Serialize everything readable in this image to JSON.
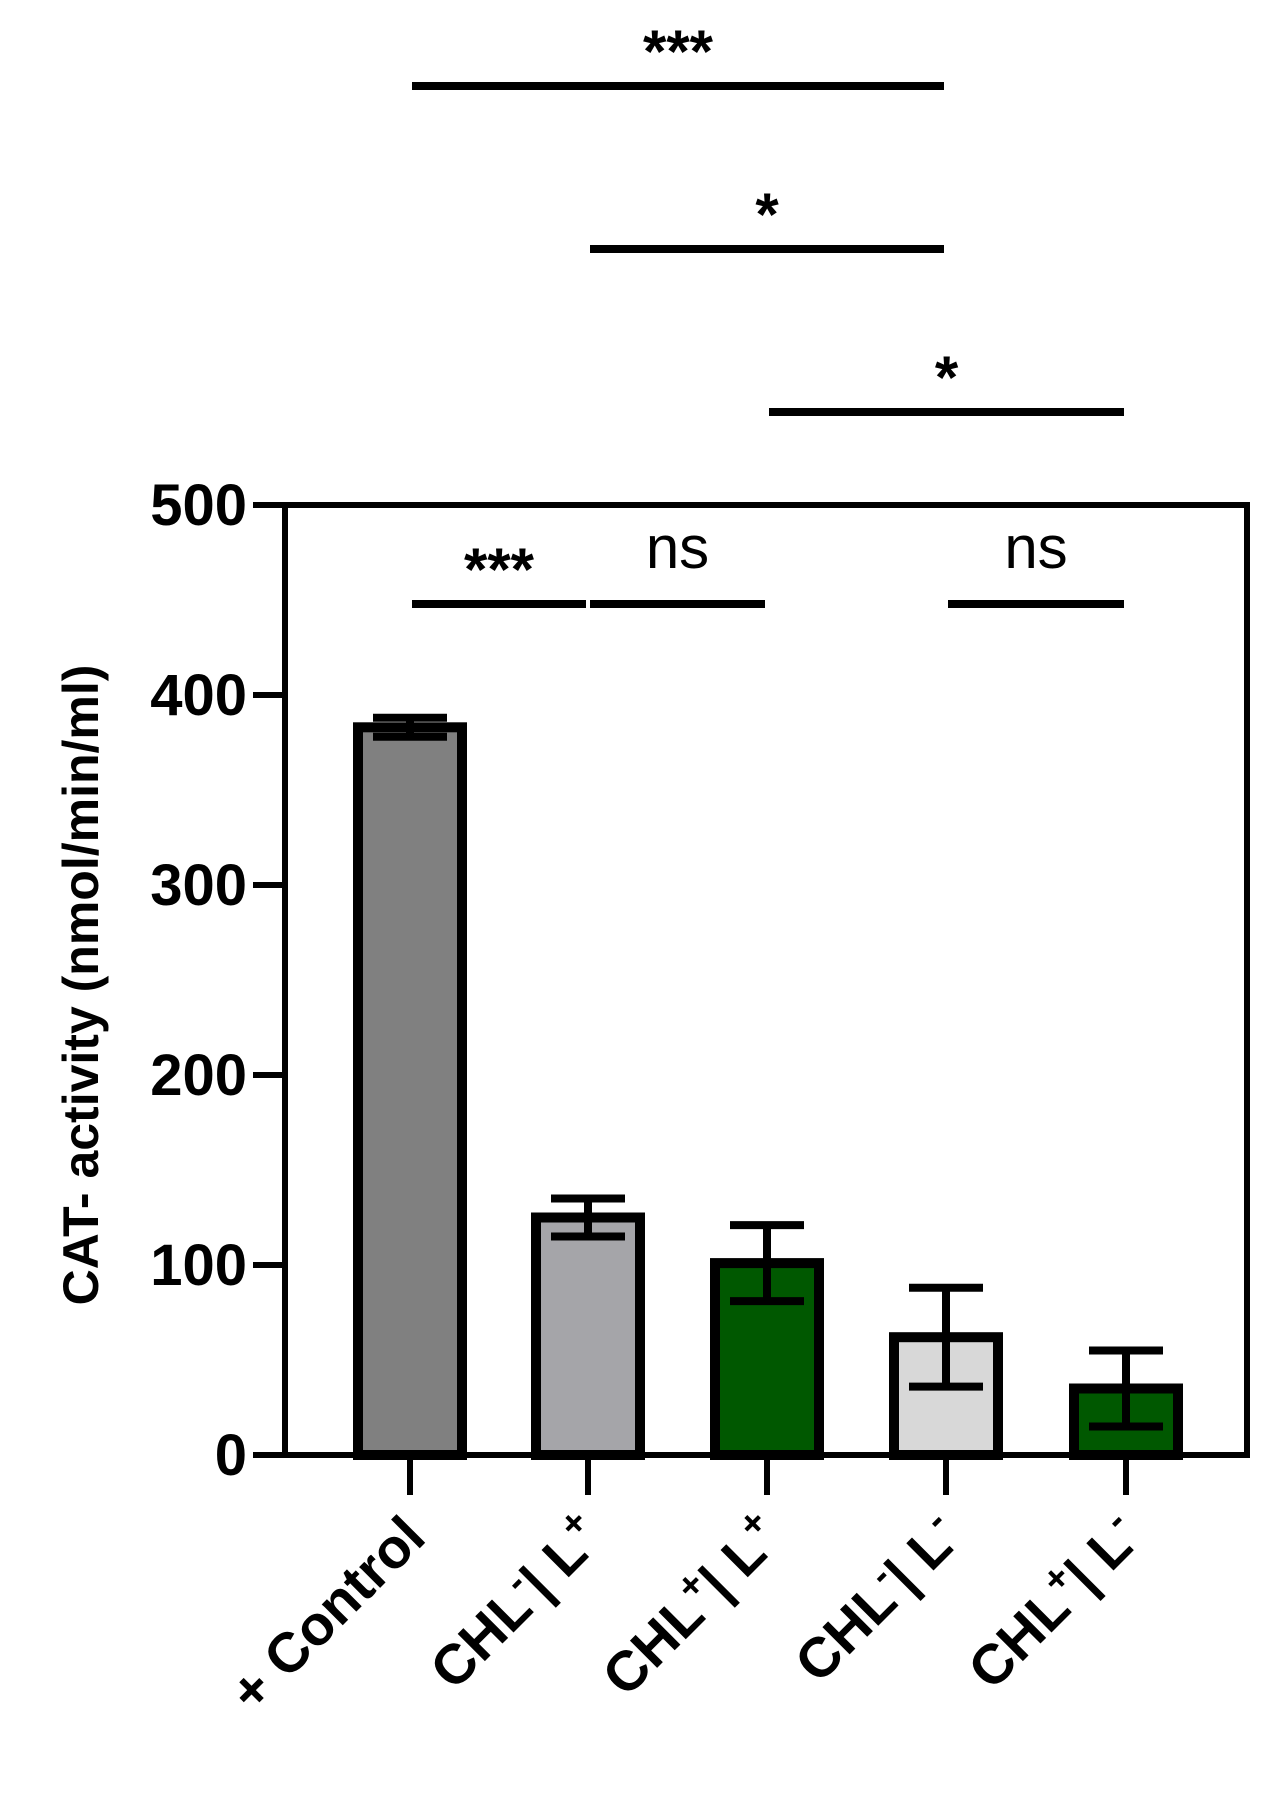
{
  "chart_data": {
    "type": "bar",
    "title": "",
    "xlabel": "",
    "ylabel": "CAT- activity (nmol/min/ml)",
    "ylim": [
      0,
      500
    ],
    "yticks": [
      0,
      100,
      200,
      300,
      400,
      500
    ],
    "ytick_labels": [
      "0",
      "100",
      "200",
      "300",
      "400",
      "500"
    ],
    "grid": false,
    "legend": "none",
    "categories": [
      {
        "label": "+ Control",
        "base": "+ Control",
        "sup": ""
      },
      {
        "label": "CHL⁻| L⁺",
        "base": "CHL",
        "sup": "-",
        "mid": "| L",
        "sup2": "+"
      },
      {
        "label": "CHL⁺| L⁺",
        "base": "CHL",
        "sup": "+",
        "mid": "| L",
        "sup2": "+"
      },
      {
        "label": "CHL⁻| L⁻",
        "base": "CHL",
        "sup": "-",
        "mid": "| L",
        "sup2": "-"
      },
      {
        "label": "CHL⁺| L⁻",
        "base": "CHL",
        "sup": "+",
        "mid": "| L",
        "sup2": "-"
      }
    ],
    "values": [
      383,
      125,
      101,
      62,
      35
    ],
    "errors": [
      5,
      10,
      20,
      26,
      20
    ],
    "colors": [
      "#808080",
      "#a5a5a9",
      "#005800",
      "#d8d8d8",
      "#005800"
    ],
    "significance": [
      {
        "from": 0,
        "to": 1,
        "text": "***",
        "placement": "inside"
      },
      {
        "from": 1,
        "to": 2,
        "text": "ns",
        "placement": "inside"
      },
      {
        "from": 3,
        "to": 4,
        "text": "ns",
        "placement": "inside"
      },
      {
        "from": 0,
        "to": 3,
        "text": "***",
        "placement": "above"
      },
      {
        "from": 1,
        "to": 3,
        "text": "*",
        "placement": "above"
      },
      {
        "from": 2,
        "to": 4,
        "text": "*",
        "placement": "above"
      }
    ]
  }
}
